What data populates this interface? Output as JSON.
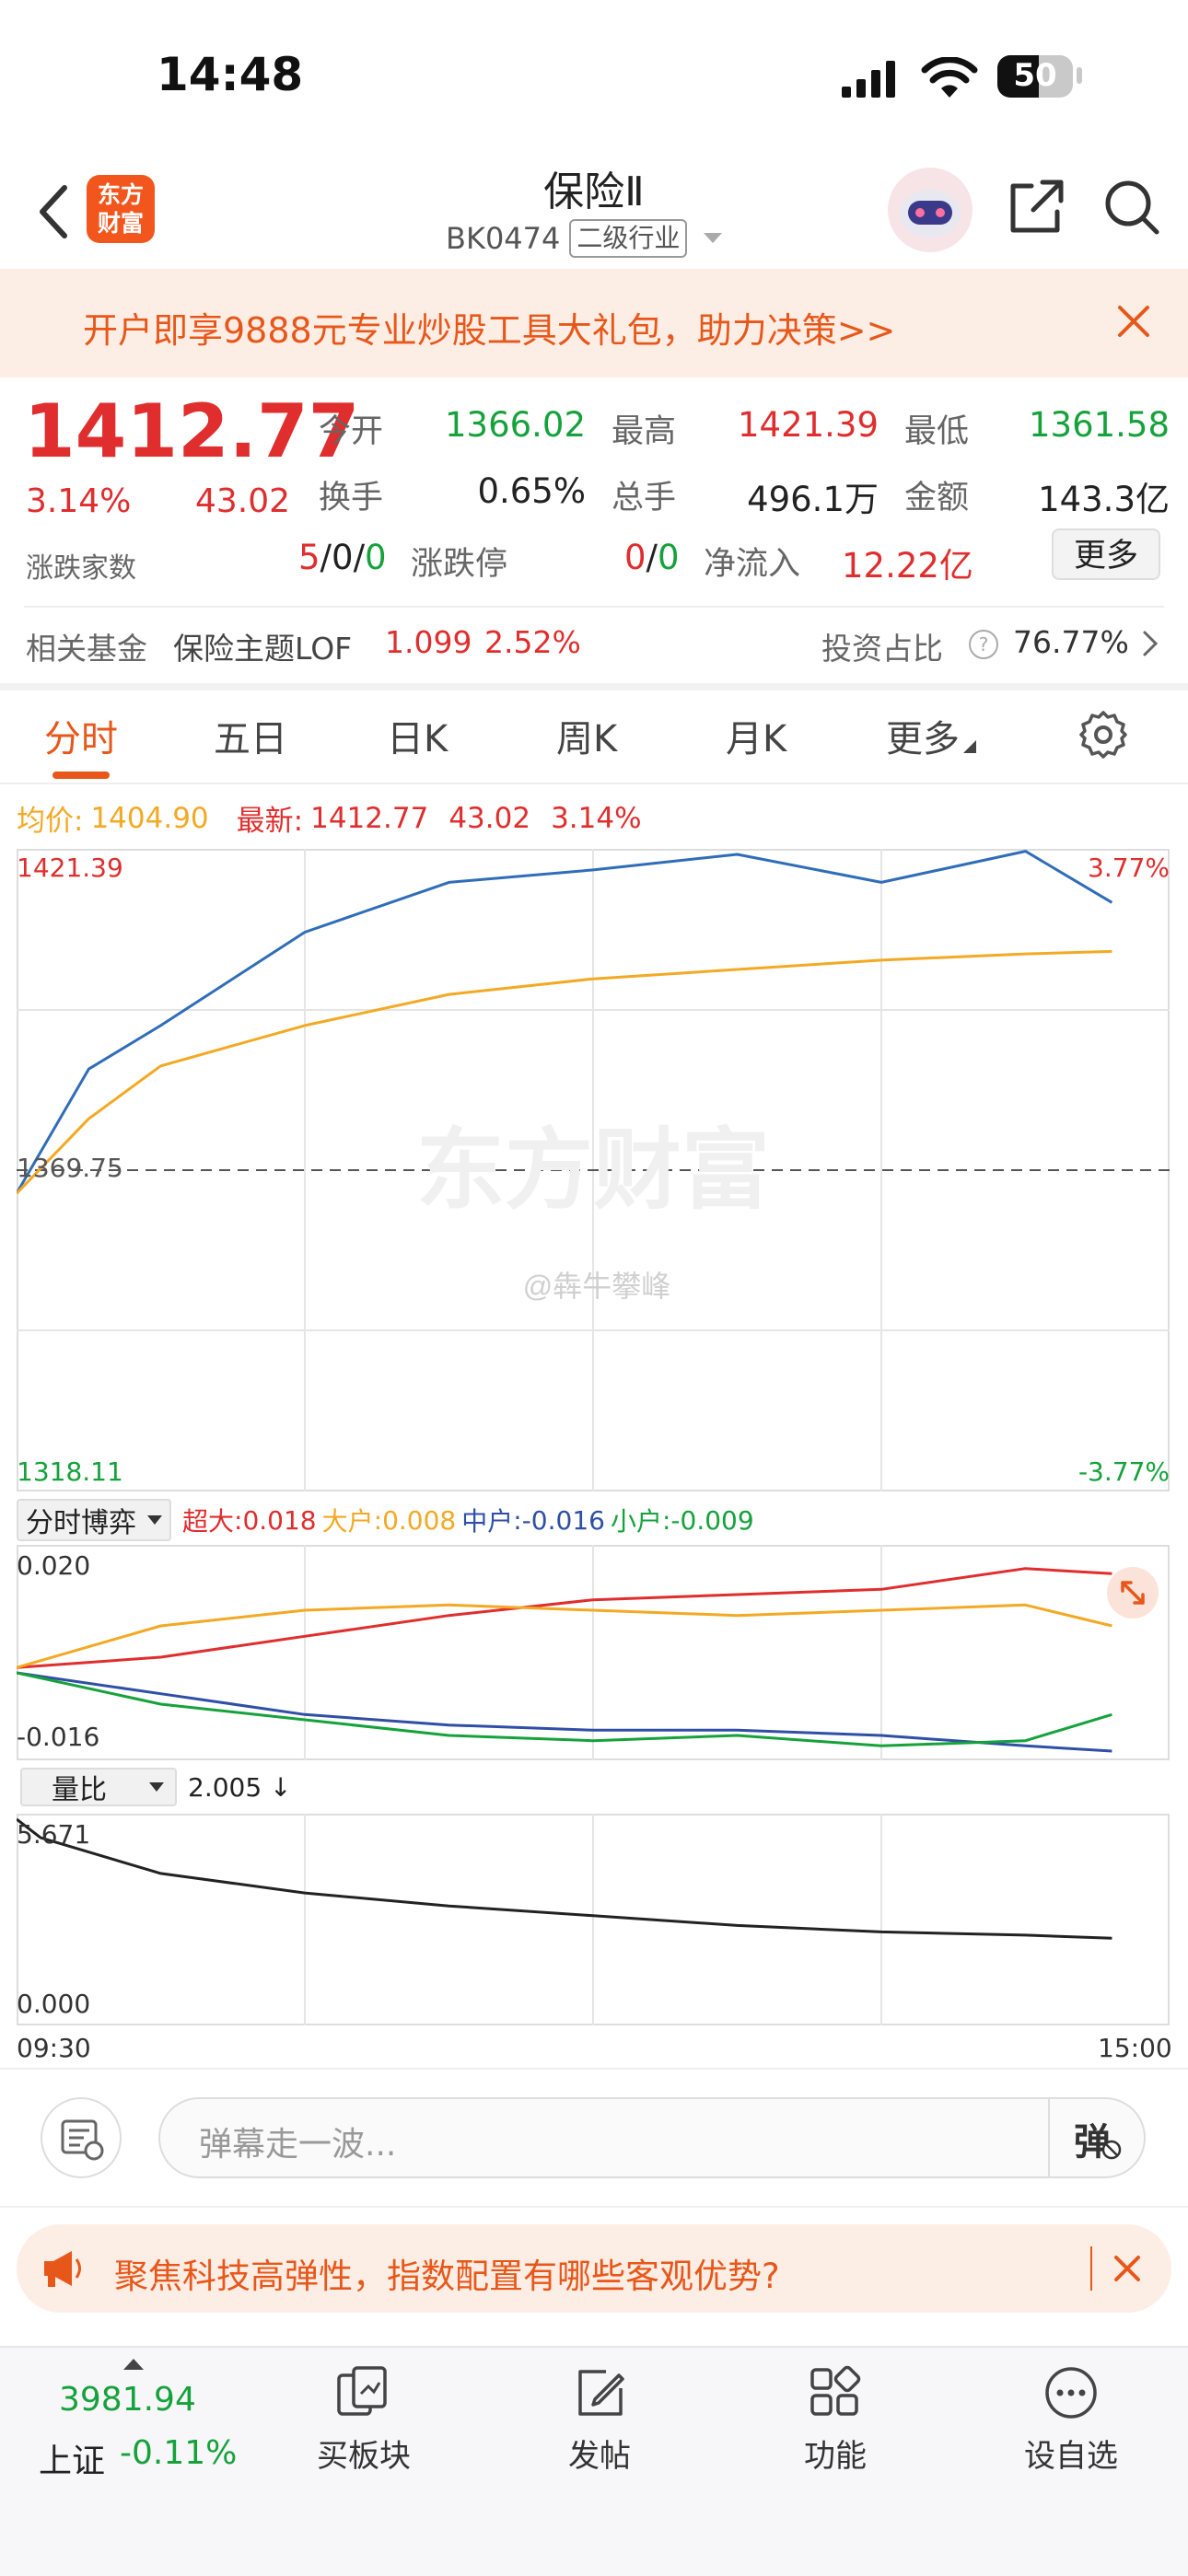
{
  "status_bar": {
    "time": "14:48",
    "battery": "50"
  },
  "header": {
    "logo_text": "东方\n财富",
    "title": "保险Ⅱ",
    "code": "BK0474",
    "tag": "二级行业"
  },
  "promo_banner": {
    "text": "开户即享9888元专业炒股工具大礼包，助力决策>>"
  },
  "quote": {
    "price": "1412.77",
    "change_pct": "3.14%",
    "change": "43.02",
    "fields": [
      {
        "label": "今开",
        "value": "1366.02",
        "color": "green"
      },
      {
        "label": "最高",
        "value": "1421.39",
        "color": "red"
      },
      {
        "label": "最低",
        "value": "1361.58",
        "color": "green"
      },
      {
        "label": "换手",
        "value": "0.65%",
        "color": "black"
      },
      {
        "label": "总手",
        "value": "496.1万",
        "color": "black"
      },
      {
        "label": "金额",
        "value": "143.3亿",
        "color": "black"
      }
    ],
    "breadth_label": "涨跌家数",
    "breadth": {
      "up": "5",
      "flat": "0",
      "down": "0"
    },
    "limit_label": "涨跌停",
    "limit": {
      "up": "0",
      "down": "0"
    },
    "inflow_label": "净流入",
    "inflow": "12.22亿",
    "more_button": "更多"
  },
  "fund_row": {
    "label": "相关基金",
    "fund_name": "保险主题LOF",
    "fund_price": "1.099",
    "fund_pct": "2.52%",
    "ratio_label": "投资占比",
    "ratio_value": "76.77%"
  },
  "tabs": [
    {
      "label": "分时",
      "active": true
    },
    {
      "label": "五日",
      "active": false
    },
    {
      "label": "日K",
      "active": false
    },
    {
      "label": "周K",
      "active": false
    },
    {
      "label": "月K",
      "active": false
    },
    {
      "label": "更多",
      "active": false
    }
  ],
  "chart_info": {
    "avg_label": "均价:",
    "avg_value": "1404.90",
    "latest_label": "最新:",
    "latest_value": "1412.77",
    "latest_change": "43.02",
    "latest_pct": "3.14%"
  },
  "watermark": {
    "brand": "东方财富",
    "weibo": "@犇牛攀峰"
  },
  "chart_data": [
    {
      "type": "line",
      "title": "",
      "y_max_label": "1421.39",
      "y_mid_label": "1369.75",
      "y_min_label": "1318.11",
      "pct_max_label": "3.77%",
      "pct_min_label": "-3.77%",
      "ylim": [
        1318.11,
        1421.39
      ],
      "x": [
        "09:30",
        "09:45",
        "10:00",
        "10:30",
        "11:00",
        "11:30",
        "13:30",
        "14:00",
        "14:30",
        "14:48"
      ],
      "series": [
        {
          "name": "",
          "color": "#2f6db8",
          "values": [
            1366.0,
            1386.0,
            1393.0,
            1408.0,
            1416.0,
            1418.0,
            1420.5,
            1416.0,
            1421.0,
            1412.77
          ]
        },
        {
          "name": "",
          "color": "#f3a923",
          "values": [
            1366.0,
            1378.0,
            1386.5,
            1393.0,
            1398.0,
            1400.5,
            1402.0,
            1403.5,
            1404.5,
            1404.9
          ]
        }
      ]
    },
    {
      "type": "line",
      "title": "",
      "selector_label": "分时博弈",
      "y_max_label": "0.020",
      "y_min_label": "-0.016",
      "ylim": [
        -0.016,
        0.02
      ],
      "x": [
        "09:30",
        "10:00",
        "10:30",
        "11:00",
        "11:30",
        "13:30",
        "14:00",
        "14:30",
        "14:48"
      ],
      "series": [
        {
          "name": "超大",
          "latest": "0.018",
          "color": "#e02d2d",
          "values": [
            0.0,
            0.002,
            0.006,
            0.01,
            0.013,
            0.014,
            0.015,
            0.019,
            0.018
          ]
        },
        {
          "name": "大户",
          "latest": "0.008",
          "color": "#f3a923",
          "values": [
            0.0,
            0.008,
            0.011,
            0.012,
            0.011,
            0.01,
            0.011,
            0.012,
            0.008
          ]
        },
        {
          "name": "中户",
          "latest": "-0.016",
          "color": "#2f4fa6",
          "values": [
            -0.001,
            -0.005,
            -0.009,
            -0.011,
            -0.012,
            -0.012,
            -0.013,
            -0.015,
            -0.016
          ]
        },
        {
          "name": "小户",
          "latest": "-0.009",
          "color": "#15a23b",
          "values": [
            -0.001,
            -0.007,
            -0.01,
            -0.013,
            -0.014,
            -0.013,
            -0.015,
            -0.014,
            -0.009
          ]
        }
      ]
    },
    {
      "type": "line",
      "title": "",
      "selector_label": "量比",
      "latest_label": "2.005 ↓",
      "y_max_label": "5.671",
      "y_min_label": "0.000",
      "ylim": [
        0,
        5.671
      ],
      "x": [
        "09:30",
        "09:35",
        "10:00",
        "10:30",
        "11:00",
        "11:30",
        "13:30",
        "14:00",
        "14:30",
        "14:48"
      ],
      "series": [
        {
          "name": "",
          "color": "#222222",
          "values": [
            5.671,
            5.1,
            4.0,
            3.4,
            3.0,
            2.7,
            2.4,
            2.2,
            2.1,
            2.005
          ]
        }
      ]
    }
  ],
  "time_axis": {
    "start": "09:30",
    "end": "15:00"
  },
  "comment_bar": {
    "placeholder": "弹幕走一波...",
    "danmu_label": "弹"
  },
  "ad_banner": {
    "text": "聚焦科技高弹性，指数配置有哪些客观优势?"
  },
  "bottom_nav": {
    "index_value": "3981.94",
    "index_name": "上证",
    "index_pct": "-0.11%",
    "items": [
      {
        "label": "买板块",
        "icon": "buy-sector-icon"
      },
      {
        "label": "发帖",
        "icon": "compose-icon"
      },
      {
        "label": "功能",
        "icon": "grid-icon"
      },
      {
        "label": "设自选",
        "icon": "more-dots-icon"
      }
    ]
  }
}
